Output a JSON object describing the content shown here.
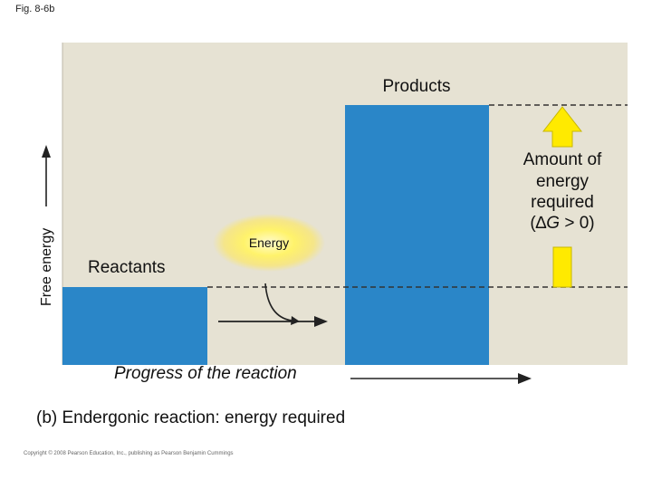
{
  "figure_label": "Fig. 8-6b",
  "y_axis_label": "Free energy",
  "x_axis_label": "Progress of the reaction",
  "products_label": "Products",
  "reactants_label": "Reactants",
  "energy_label": "Energy",
  "annotation": {
    "line1": "Amount of",
    "line2": "energy",
    "line3": "required",
    "line4_prefix": "(",
    "line4_delta": "∆",
    "line4_g": "G",
    "line4_suffix": " > 0)"
  },
  "caption": "(b) Endergonic reaction: energy required",
  "copyright": "Copyright © 2008 Pearson Education, Inc., publishing as Pearson Benjamin Cummings",
  "colors": {
    "background": "#e6e2d3",
    "bar": "#2a86c8",
    "arrow_fill": "#ffea00",
    "arrow_stroke": "#c9b800",
    "glow": "#fff36b"
  },
  "levels": {
    "reactants_relative": 0.27,
    "products_relative": 1.0
  }
}
